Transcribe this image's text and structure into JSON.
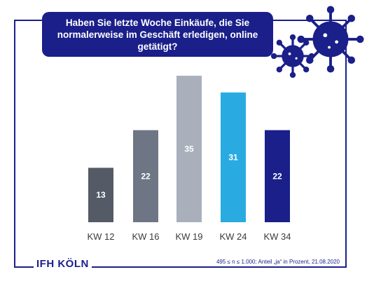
{
  "title": "Haben Sie letzte Woche Einkäufe, die Sie normalerweise im Geschäft erledigen, online getätigt?",
  "logo": "IFH KÖLN",
  "footnote": "495 ≤ n ≤ 1.000; Anteil „ja“ in Prozent, 21.08.2020",
  "icons": [
    "virus-icon",
    "virus-icon"
  ],
  "colors": {
    "accent": "#1a1f8a"
  },
  "chart_data": {
    "type": "bar",
    "categories": [
      "KW 12",
      "KW 16",
      "KW 19",
      "KW 24",
      "KW 34"
    ],
    "values": [
      13,
      22,
      35,
      31,
      22
    ],
    "colors": [
      "#545a66",
      "#6e7686",
      "#a9b0bc",
      "#29abe2",
      "#1a1f8a"
    ],
    "grid": false,
    "legend": "none"
  }
}
